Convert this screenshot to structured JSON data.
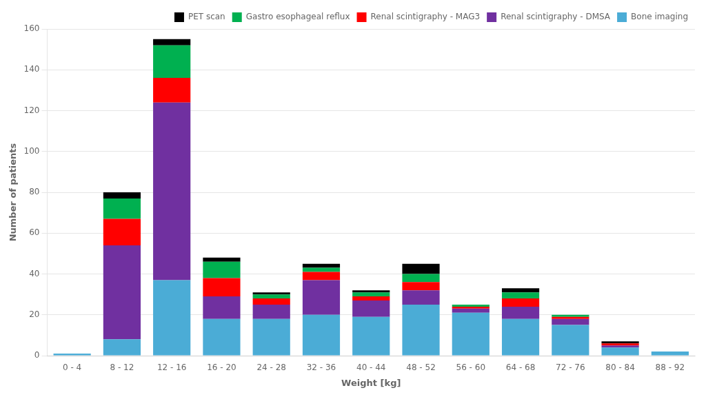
{
  "chart_data": {
    "type": "bar",
    "stacked": true,
    "xlabel": "Weight [kg]",
    "ylabel": "Number of patients",
    "categories": [
      "0 - 4",
      "8 - 12",
      "12 - 16",
      "16 - 20",
      "24 - 28",
      "32 - 36",
      "40 - 44",
      "48 - 52",
      "56 - 60",
      "64 - 68",
      "72 - 76",
      "80 - 84",
      "88 - 92"
    ],
    "series": [
      {
        "name": "Bone imaging",
        "color": "#4BACD6",
        "values": [
          1,
          8,
          37,
          18,
          18,
          20,
          19,
          25,
          21,
          18,
          15,
          4,
          2
        ]
      },
      {
        "name": "Renal scintigraphy - DMSA",
        "color": "#7030A0",
        "values": [
          0,
          46,
          87,
          11,
          7,
          17,
          8,
          7,
          2,
          6,
          3,
          1,
          0
        ]
      },
      {
        "name": "Renal scintigraphy - MAG3",
        "color": "#FF0000",
        "values": [
          0,
          13,
          12,
          9,
          3,
          4,
          2,
          4,
          1,
          4,
          1,
          1,
          0
        ]
      },
      {
        "name": "Gastro esophageal reflux",
        "color": "#00B050",
        "values": [
          0,
          10,
          16,
          8,
          2,
          2,
          2,
          4,
          1,
          3,
          1,
          0,
          0
        ]
      },
      {
        "name": "PET scan",
        "color": "#000000",
        "values": [
          0,
          3,
          3,
          2,
          1,
          2,
          1,
          5,
          0,
          2,
          0,
          1,
          0
        ]
      }
    ],
    "ylim": [
      0,
      160
    ],
    "yticks": [
      0,
      20,
      40,
      60,
      80,
      100,
      120,
      140,
      160
    ],
    "grid": true,
    "legend": "upper right"
  }
}
